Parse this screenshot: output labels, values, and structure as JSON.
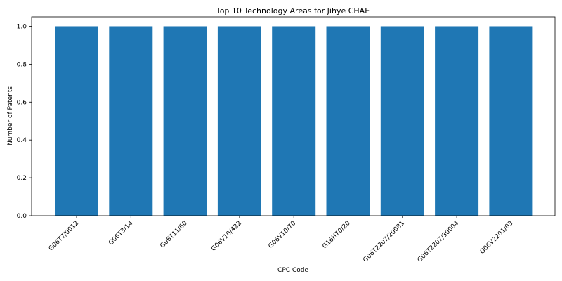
{
  "chart_data": {
    "type": "bar",
    "title": "Top 10 Technology Areas for Jihye CHAE",
    "xlabel": "CPC Code",
    "ylabel": "Number of Patents",
    "categories": [
      "G06T7/0012",
      "G06T3/14",
      "G06T11/60",
      "G06V10/422",
      "G06V10/70",
      "G16H70/20",
      "G06T2207/20081",
      "G06T2207/30004",
      "G06V2201/03"
    ],
    "values": [
      1,
      1,
      1,
      1,
      1,
      1,
      1,
      1,
      1
    ],
    "ylim": [
      0,
      1.05
    ],
    "yticks": [
      "0.0",
      "0.2",
      "0.4",
      "0.6",
      "0.8",
      "1.0"
    ],
    "grid": false,
    "bar_color": "#1f77b4"
  }
}
